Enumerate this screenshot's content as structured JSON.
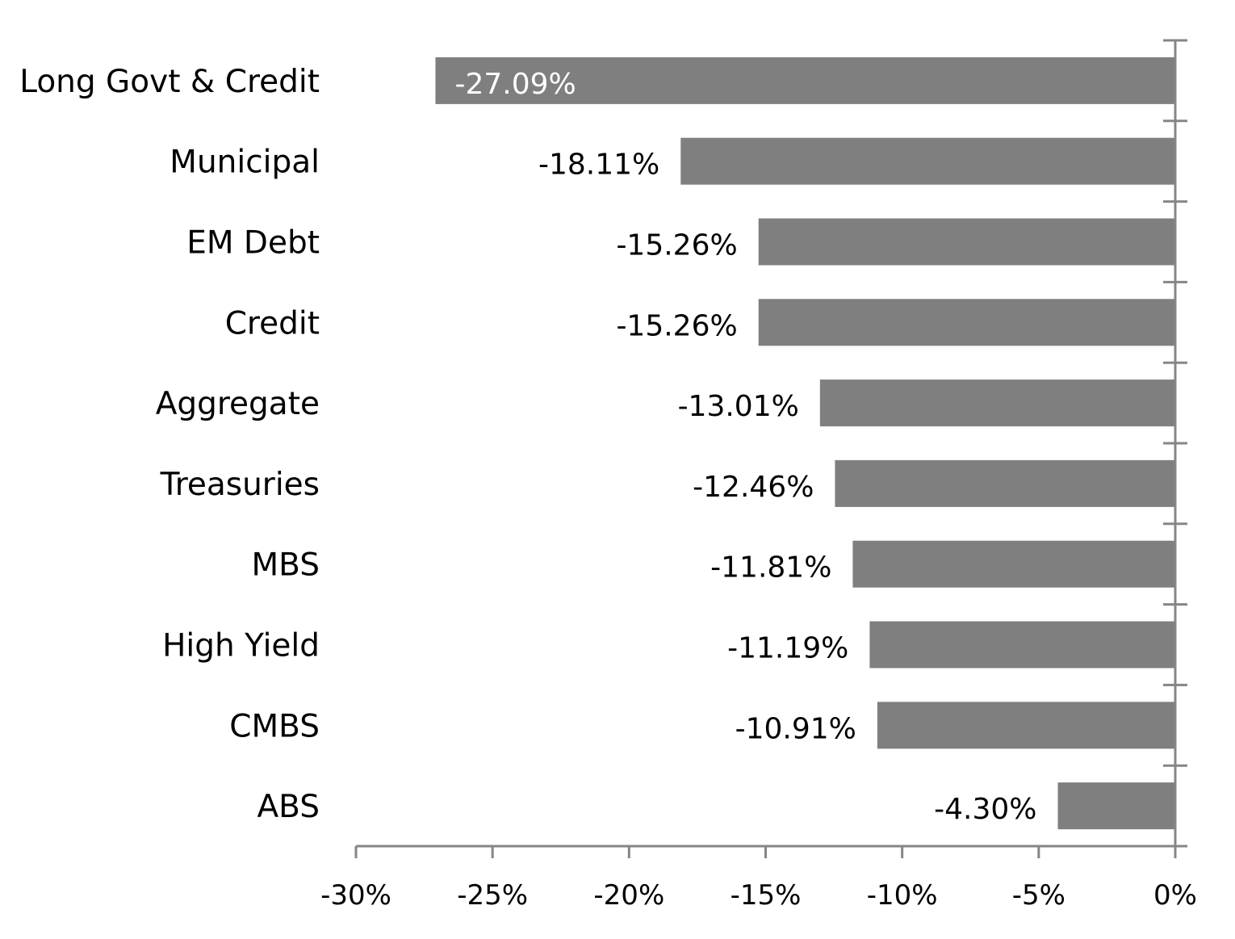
{
  "chart_data": {
    "type": "bar",
    "orientation": "horizontal",
    "title": "",
    "xlabel": "",
    "ylabel": "",
    "categories": [
      "Long Govt & Credit",
      "Municipal",
      "EM Debt",
      "Credit",
      "Aggregate",
      "Treasuries",
      "MBS",
      "High Yield",
      "CMBS",
      "ABS"
    ],
    "values": [
      -27.09,
      -18.11,
      -15.26,
      -15.26,
      -13.01,
      -12.46,
      -11.81,
      -11.19,
      -10.91,
      -4.3
    ],
    "data_labels": [
      "-27.09%",
      "-18.11%",
      "-15.26%",
      "-15.26%",
      "-13.01%",
      "-12.46%",
      "-11.81%",
      "-11.19%",
      "-10.91%",
      "-4.30%"
    ],
    "xlim": [
      -30,
      0
    ],
    "x_ticks": [
      -30,
      -25,
      -20,
      -15,
      -10,
      -5,
      0
    ],
    "x_tick_labels": [
      "-30%",
      "-25%",
      "-20%",
      "-15%",
      "-10%",
      "-5%",
      "0%"
    ],
    "grid": false,
    "legend": "none",
    "colors": {
      "bar": "#7f7f7f",
      "axis": "#868686",
      "text": "#000000",
      "inside_label": "#ffffff"
    }
  }
}
